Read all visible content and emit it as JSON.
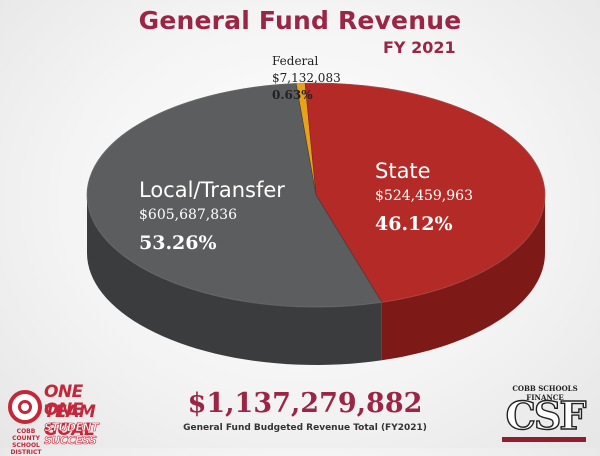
{
  "title": "General Fund Revenue",
  "subtitle": "FY 2021",
  "chart_data": {
    "type": "pie",
    "title": "General Fund Revenue",
    "subtitle": "FY 2021",
    "slices": [
      {
        "label": "Local/Transfer",
        "amount": "$605,687,836",
        "percent_label": "53.26%",
        "value": 53.26,
        "color": "#5c5d5f",
        "side_color": "#3b3c3e"
      },
      {
        "label": "State",
        "amount": "$524,459,963",
        "percent_label": "46.12%",
        "value": 46.12,
        "color": "#b32a27",
        "side_color": "#7d1a17"
      },
      {
        "label": "Federal",
        "amount": "$7,132,083",
        "percent_label": "0.63%",
        "value": 0.63,
        "color": "#e8a21a",
        "side_color": "#a9730e"
      }
    ],
    "total": "$1,137,279,882",
    "total_label": "General Fund Budgeted Revenue Total (FY2021)"
  },
  "footer": {
    "slogan_line1": "ONE TEAM",
    "slogan_line2": "ONE GOAL",
    "slogan_line3": "STUDENT SUCCESS",
    "district_name": "COBB COUNTY SCHOOL DISTRICT",
    "finance_caption": "COBB SCHOOLS FINANCE",
    "finance_mark": "CSF"
  },
  "colors": {
    "title": "#9b2544",
    "brand_red": "#c4263a"
  }
}
